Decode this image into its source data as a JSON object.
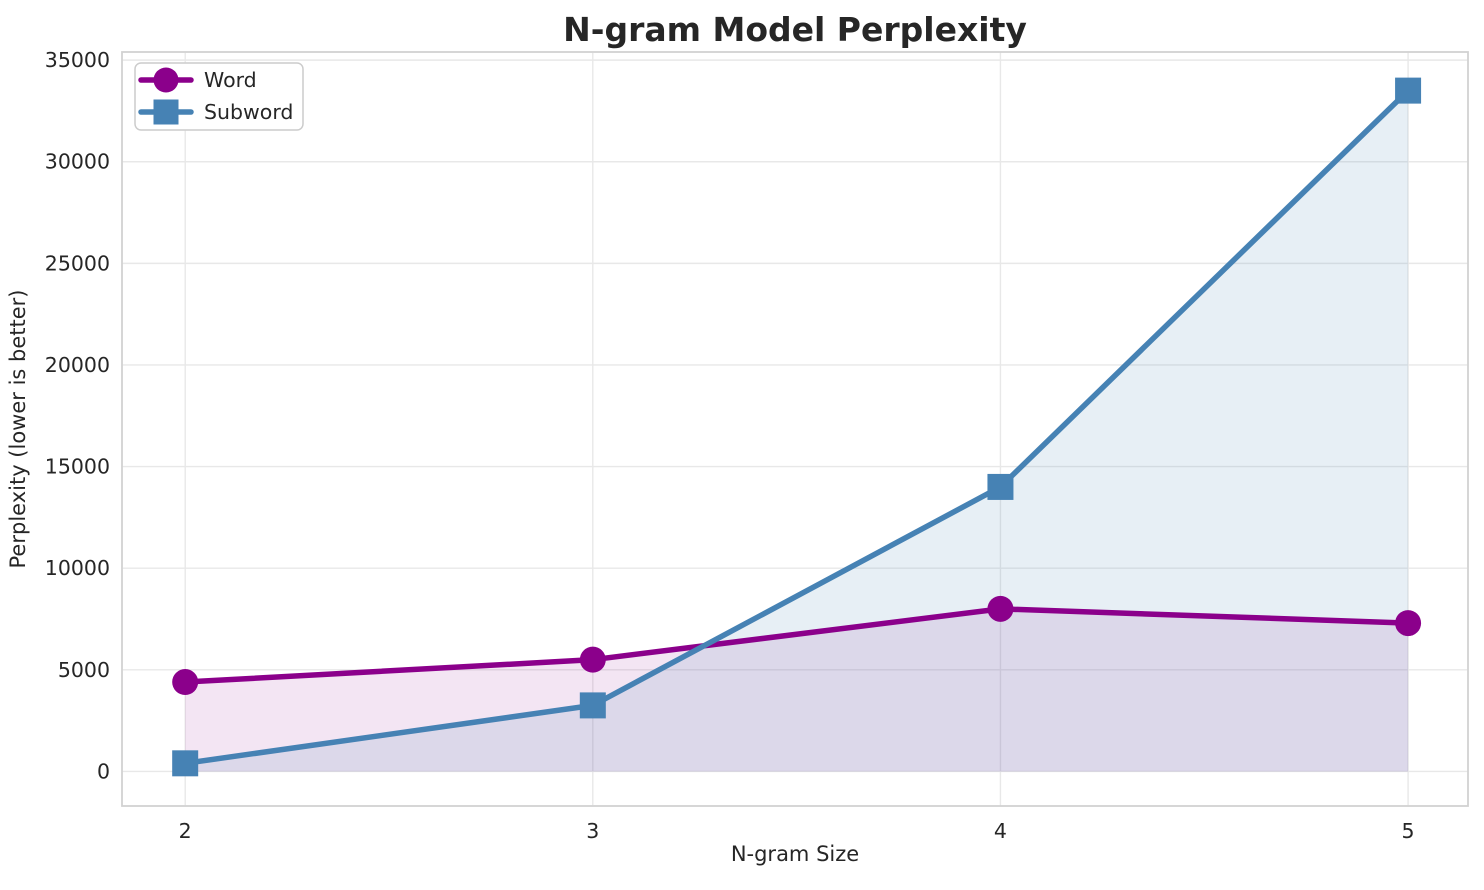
{
  "chart_data": {
    "type": "line",
    "title": "N-gram Model Perplexity",
    "xlabel": "N-gram Size",
    "ylabel": "Perplexity (lower is better)",
    "x": [
      2,
      3,
      4,
      5
    ],
    "series": [
      {
        "name": "Word",
        "values": [
          4400,
          5500,
          8000,
          7300
        ],
        "color": "#8B008B",
        "marker": "circle",
        "fill_opacity": 0.1
      },
      {
        "name": "Subword",
        "values": [
          400,
          3250,
          14000,
          33500
        ],
        "color": "#4682B4",
        "marker": "square",
        "fill_opacity": 0.13
      }
    ],
    "xticks": [
      2,
      3,
      4,
      5
    ],
    "xtick_labels": [
      "2",
      "3",
      "4",
      "5"
    ],
    "yticks": [
      0,
      5000,
      10000,
      15000,
      20000,
      25000,
      30000,
      35000
    ],
    "ytick_labels": [
      "0",
      "5000",
      "10000",
      "15000",
      "20000",
      "25000",
      "30000",
      "35000"
    ],
    "xlim": [
      1.845,
      5.147
    ],
    "ylim": [
      -1700,
      35400
    ],
    "grid": true,
    "area_fill_to_zero": true,
    "legend": {
      "position": "upper-left",
      "entries": [
        "Word",
        "Subword"
      ]
    }
  },
  "style": {
    "text_color": "#262626",
    "grid_color": "#e8e8e8",
    "spine_color": "#d2d2d2",
    "background": "#ffffff"
  }
}
